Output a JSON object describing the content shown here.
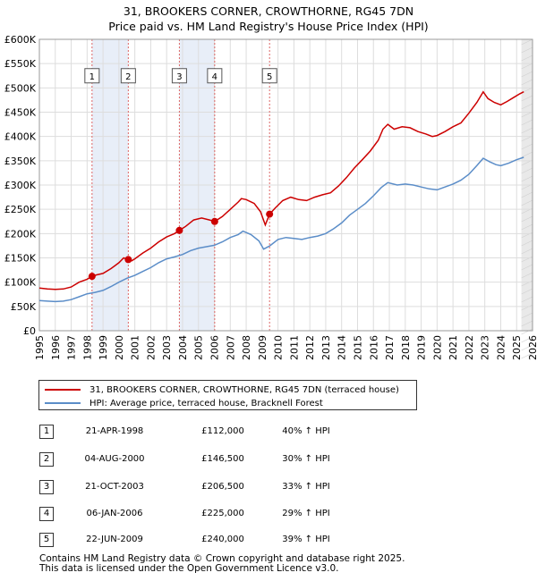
{
  "title": "31, BROOKERS CORNER, CROWTHORNE, RG45 7DN",
  "subtitle": "Price paid vs. HM Land Registry's House Price Index (HPI)",
  "chart_data": {
    "type": "line",
    "x_range": [
      1995,
      2026
    ],
    "ylim": [
      0,
      600000
    ],
    "y_ticks": [
      {
        "value": 0,
        "label": "£0"
      },
      {
        "value": 50000,
        "label": "£50K"
      },
      {
        "value": 100000,
        "label": "£100K"
      },
      {
        "value": 150000,
        "label": "£150K"
      },
      {
        "value": 200000,
        "label": "£200K"
      },
      {
        "value": 250000,
        "label": "£250K"
      },
      {
        "value": 300000,
        "label": "£300K"
      },
      {
        "value": 350000,
        "label": "£350K"
      },
      {
        "value": 400000,
        "label": "£400K"
      },
      {
        "value": 450000,
        "label": "£450K"
      },
      {
        "value": 500000,
        "label": "£500K"
      },
      {
        "value": 550000,
        "label": "£550K"
      },
      {
        "value": 600000,
        "label": "£600K"
      }
    ],
    "x_ticks": [
      "1995",
      "1996",
      "1997",
      "1998",
      "1999",
      "2000",
      "2001",
      "2002",
      "2003",
      "2004",
      "2005",
      "2006",
      "2007",
      "2008",
      "2009",
      "2010",
      "2011",
      "2012",
      "2013",
      "2014",
      "2015",
      "2016",
      "2017",
      "2018",
      "2019",
      "2020",
      "2021",
      "2022",
      "2023",
      "2024",
      "2025",
      "2026"
    ],
    "grid": true,
    "series": [
      {
        "name": "31, BROOKERS CORNER, CROWTHORNE, RG45 7DN (terraced house)",
        "color": "#cc0000",
        "points": [
          [
            1995.0,
            88000
          ],
          [
            1995.5,
            86000
          ],
          [
            1996.0,
            85000
          ],
          [
            1996.5,
            86000
          ],
          [
            1997.0,
            90000
          ],
          [
            1997.5,
            100000
          ],
          [
            1998.0,
            106000
          ],
          [
            1998.31,
            112000
          ],
          [
            1998.6,
            115000
          ],
          [
            1999.0,
            118000
          ],
          [
            1999.5,
            128000
          ],
          [
            2000.0,
            140000
          ],
          [
            2000.3,
            150000
          ],
          [
            2000.59,
            146500
          ],
          [
            2000.8,
            144000
          ],
          [
            2001.0,
            148000
          ],
          [
            2001.5,
            160000
          ],
          [
            2002.0,
            170000
          ],
          [
            2002.5,
            183000
          ],
          [
            2003.0,
            193000
          ],
          [
            2003.5,
            200000
          ],
          [
            2003.8,
            206500
          ],
          [
            2004.2,
            215000
          ],
          [
            2004.7,
            228000
          ],
          [
            2005.2,
            232000
          ],
          [
            2005.7,
            228000
          ],
          [
            2006.02,
            225000
          ],
          [
            2006.5,
            235000
          ],
          [
            2007.0,
            250000
          ],
          [
            2007.5,
            265000
          ],
          [
            2007.7,
            272000
          ],
          [
            2008.0,
            270000
          ],
          [
            2008.5,
            262000
          ],
          [
            2008.9,
            245000
          ],
          [
            2009.2,
            218000
          ],
          [
            2009.47,
            240000
          ],
          [
            2009.8,
            252000
          ],
          [
            2010.3,
            268000
          ],
          [
            2010.8,
            275000
          ],
          [
            2011.3,
            270000
          ],
          [
            2011.8,
            268000
          ],
          [
            2012.3,
            275000
          ],
          [
            2012.8,
            280000
          ],
          [
            2013.3,
            284000
          ],
          [
            2013.8,
            298000
          ],
          [
            2014.3,
            315000
          ],
          [
            2014.8,
            335000
          ],
          [
            2015.3,
            352000
          ],
          [
            2015.8,
            370000
          ],
          [
            2016.3,
            392000
          ],
          [
            2016.6,
            415000
          ],
          [
            2016.9,
            425000
          ],
          [
            2017.3,
            415000
          ],
          [
            2017.8,
            420000
          ],
          [
            2018.3,
            418000
          ],
          [
            2018.8,
            410000
          ],
          [
            2019.3,
            405000
          ],
          [
            2019.7,
            400000
          ],
          [
            2020.0,
            402000
          ],
          [
            2020.5,
            410000
          ],
          [
            2021.0,
            420000
          ],
          [
            2021.5,
            428000
          ],
          [
            2022.0,
            448000
          ],
          [
            2022.5,
            470000
          ],
          [
            2022.9,
            492000
          ],
          [
            2023.2,
            478000
          ],
          [
            2023.6,
            470000
          ],
          [
            2024.0,
            465000
          ],
          [
            2024.4,
            472000
          ],
          [
            2024.8,
            480000
          ],
          [
            2025.2,
            488000
          ],
          [
            2025.45,
            492000
          ]
        ]
      },
      {
        "name": "HPI: Average price, terraced house, Bracknell Forest",
        "color": "#5b8dc8",
        "points": [
          [
            1995.0,
            62000
          ],
          [
            1995.5,
            61000
          ],
          [
            1996.0,
            60000
          ],
          [
            1996.5,
            61000
          ],
          [
            1997.0,
            64000
          ],
          [
            1997.5,
            70000
          ],
          [
            1998.0,
            76000
          ],
          [
            1998.5,
            79000
          ],
          [
            1999.0,
            83000
          ],
          [
            1999.5,
            91000
          ],
          [
            2000.0,
            100000
          ],
          [
            2000.5,
            108000
          ],
          [
            2001.0,
            114000
          ],
          [
            2001.5,
            122000
          ],
          [
            2002.0,
            130000
          ],
          [
            2002.5,
            140000
          ],
          [
            2003.0,
            148000
          ],
          [
            2003.5,
            152000
          ],
          [
            2004.0,
            157000
          ],
          [
            2004.5,
            165000
          ],
          [
            2005.0,
            170000
          ],
          [
            2005.5,
            173000
          ],
          [
            2006.0,
            176000
          ],
          [
            2006.5,
            183000
          ],
          [
            2007.0,
            192000
          ],
          [
            2007.5,
            198000
          ],
          [
            2007.8,
            205000
          ],
          [
            2008.3,
            198000
          ],
          [
            2008.8,
            185000
          ],
          [
            2009.1,
            168000
          ],
          [
            2009.5,
            175000
          ],
          [
            2010.0,
            188000
          ],
          [
            2010.5,
            192000
          ],
          [
            2011.0,
            190000
          ],
          [
            2011.5,
            188000
          ],
          [
            2012.0,
            192000
          ],
          [
            2012.5,
            195000
          ],
          [
            2013.0,
            200000
          ],
          [
            2013.5,
            210000
          ],
          [
            2014.0,
            222000
          ],
          [
            2014.5,
            238000
          ],
          [
            2015.0,
            250000
          ],
          [
            2015.5,
            262000
          ],
          [
            2016.0,
            278000
          ],
          [
            2016.5,
            295000
          ],
          [
            2016.9,
            305000
          ],
          [
            2017.5,
            300000
          ],
          [
            2018.0,
            302000
          ],
          [
            2018.5,
            300000
          ],
          [
            2019.0,
            296000
          ],
          [
            2019.5,
            292000
          ],
          [
            2020.0,
            290000
          ],
          [
            2020.5,
            296000
          ],
          [
            2021.0,
            302000
          ],
          [
            2021.5,
            310000
          ],
          [
            2022.0,
            322000
          ],
          [
            2022.5,
            340000
          ],
          [
            2022.9,
            355000
          ],
          [
            2023.3,
            348000
          ],
          [
            2023.7,
            342000
          ],
          [
            2024.0,
            340000
          ],
          [
            2024.5,
            345000
          ],
          [
            2025.0,
            352000
          ],
          [
            2025.45,
            357000
          ]
        ]
      }
    ],
    "sales": [
      {
        "id": "1",
        "x": 1998.31,
        "price": 112000
      },
      {
        "id": "2",
        "x": 2000.59,
        "price": 146500
      },
      {
        "id": "3",
        "x": 2003.8,
        "price": 206500
      },
      {
        "id": "4",
        "x": 2006.02,
        "price": 225000
      },
      {
        "id": "5",
        "x": 2009.47,
        "price": 240000
      }
    ],
    "forecast_start": 2025.3,
    "marker_label_value": 525000
  },
  "legend": {
    "items": [
      {
        "label": "31, BROOKERS CORNER, CROWTHORNE, RG45 7DN (terraced house)",
        "color": "#cc0000"
      },
      {
        "label": "HPI: Average price, terraced house, Bracknell Forest",
        "color": "#5b8dc8"
      }
    ]
  },
  "transactions": [
    {
      "num": "1",
      "date": "21-APR-1998",
      "price": "£112,000",
      "hpi": "40% ↑ HPI"
    },
    {
      "num": "2",
      "date": "04-AUG-2000",
      "price": "£146,500",
      "hpi": "30% ↑ HPI"
    },
    {
      "num": "3",
      "date": "21-OCT-2003",
      "price": "£206,500",
      "hpi": "33% ↑ HPI"
    },
    {
      "num": "4",
      "date": "06-JAN-2006",
      "price": "£225,000",
      "hpi": "29% ↑ HPI"
    },
    {
      "num": "5",
      "date": "22-JUN-2009",
      "price": "£240,000",
      "hpi": "39% ↑ HPI"
    }
  ],
  "footer": {
    "line1": "Contains HM Land Registry data © Crown copyright and database right 2025.",
    "line2": "This data is licensed under the Open Government Licence v3.0."
  }
}
